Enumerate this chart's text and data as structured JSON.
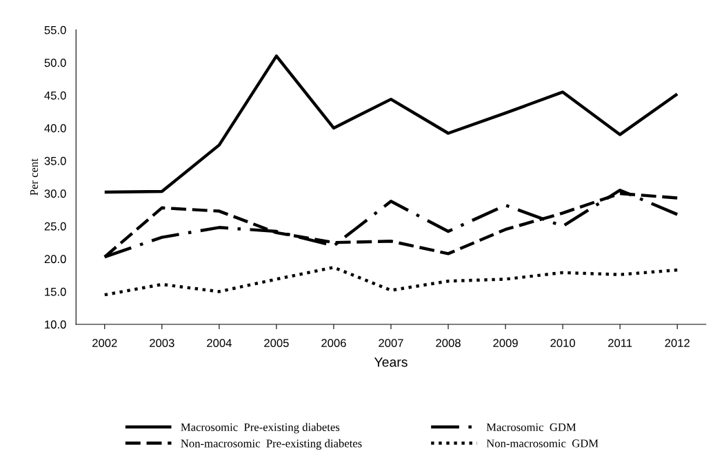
{
  "chart_data": {
    "type": "line",
    "xlabel": "Years",
    "ylabel": "Per cent",
    "categories": [
      "2002",
      "2003",
      "2004",
      "2005",
      "2006",
      "2007",
      "2008",
      "2009",
      "2010",
      "2011",
      "2012"
    ],
    "ylim": [
      10,
      55
    ],
    "yticks": [
      {
        "value": 10,
        "label": "10.0"
      },
      {
        "value": 15,
        "label": "15.0"
      },
      {
        "value": 20,
        "label": "20.0"
      },
      {
        "value": 25,
        "label": "25.0"
      },
      {
        "value": 30,
        "label": "30.0"
      },
      {
        "value": 35,
        "label": "35.0"
      },
      {
        "value": 40,
        "label": "40.0"
      },
      {
        "value": 45,
        "label": "45.0"
      },
      {
        "value": 50,
        "label": "50.0"
      },
      {
        "value": 55,
        "label": "55.0"
      }
    ],
    "grid": false,
    "legend": "bottom",
    "marker": "none",
    "series": [
      {
        "name": "Macrosomic  Pre-existing diabetes",
        "color": "#000000",
        "line_style": "solid",
        "values": [
          30.2,
          30.3,
          37.4,
          51.0,
          40.0,
          44.4,
          39.2,
          42.3,
          45.5,
          39.0,
          45.2
        ]
      },
      {
        "name": "Macrosomic  GDM",
        "color": "#000000",
        "line_style": "dashdot",
        "values": [
          20.3,
          23.3,
          24.8,
          24.2,
          22.0,
          28.8,
          24.2,
          28.2,
          25.0,
          30.5,
          26.8
        ]
      },
      {
        "name": "Non-macrosomic  Pre-existing diabetes",
        "color": "#000000",
        "line_style": "dashed",
        "values": [
          20.3,
          27.8,
          27.3,
          24.0,
          22.5,
          22.7,
          20.8,
          24.5,
          27.0,
          30.0,
          29.3
        ]
      },
      {
        "name": "Non-macrosomic  GDM",
        "color": "#000000",
        "line_style": "dotted",
        "values": [
          14.5,
          16.1,
          15.0,
          16.9,
          18.7,
          15.2,
          16.6,
          16.9,
          17.9,
          17.6,
          18.3
        ]
      }
    ]
  }
}
